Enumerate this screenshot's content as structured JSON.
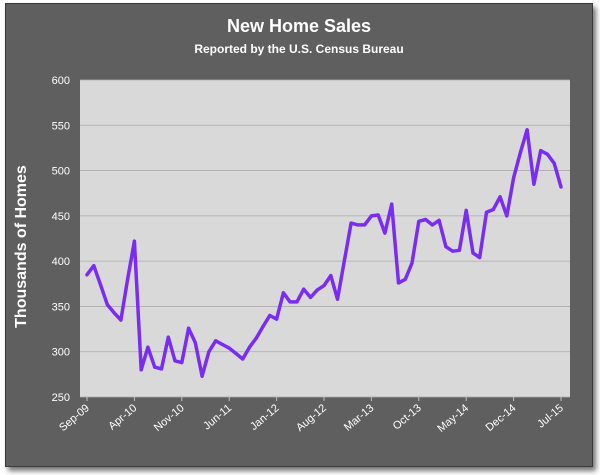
{
  "chart_data": {
    "type": "line",
    "title": "New Home Sales",
    "subtitle": "Reported by the U.S. Census Bureau",
    "ylabel": "Thousands of Homes",
    "xlabel": "",
    "ylim": [
      250,
      600
    ],
    "yticks": [
      250,
      300,
      350,
      400,
      450,
      500,
      550,
      600
    ],
    "xtick_labels": [
      "Sep-09",
      "Apr-10",
      "Nov-10",
      "Jun-11",
      "Jan-12",
      "Aug-12",
      "Mar-13",
      "Oct-13",
      "May-14",
      "Dec-14",
      "Jul-15"
    ],
    "grid": true,
    "legend": "none",
    "line_color": "#7b2cf2",
    "plot_background": "#d9d9d9",
    "series": [
      {
        "x": [
          "Sep-09",
          "Oct-09",
          "Nov-09",
          "Dec-09",
          "Jan-10",
          "Feb-10",
          "Mar-10",
          "Apr-10",
          "May-10",
          "Jun-10",
          "Jul-10",
          "Aug-10",
          "Sep-10",
          "Oct-10",
          "Nov-10",
          "Dec-10",
          "Jan-11",
          "Feb-11",
          "Mar-11",
          "Apr-11",
          "May-11",
          "Jun-11",
          "Jul-11",
          "Aug-11",
          "Sep-11",
          "Oct-11",
          "Nov-11",
          "Dec-11",
          "Jan-12",
          "Feb-12",
          "Mar-12",
          "Apr-12",
          "May-12",
          "Jun-12",
          "Jul-12",
          "Aug-12",
          "Sep-12",
          "Oct-12",
          "Nov-12",
          "Dec-12",
          "Jan-13",
          "Feb-13",
          "Mar-13",
          "Apr-13",
          "May-13",
          "Jun-13",
          "Jul-13",
          "Aug-13",
          "Sep-13",
          "Oct-13",
          "Nov-13",
          "Dec-13",
          "Jan-14",
          "Feb-14",
          "Mar-14",
          "Apr-14",
          "May-14",
          "Jun-14",
          "Jul-14",
          "Aug-14",
          "Sep-14",
          "Oct-14",
          "Nov-14",
          "Dec-14",
          "Jan-15",
          "Feb-15",
          "Mar-15",
          "Apr-15",
          "May-15",
          "Jun-15",
          "Jul-15"
        ],
        "values": [
          385,
          395,
          374,
          352,
          343,
          335,
          380,
          422,
          280,
          305,
          283,
          281,
          316,
          290,
          288,
          326,
          310,
          273,
          300,
          312,
          308,
          304,
          298,
          292,
          305,
          315,
          328,
          340,
          336,
          365,
          355,
          355,
          369,
          360,
          368,
          373,
          384,
          358,
          400,
          442,
          440,
          440,
          450,
          451,
          431,
          463,
          376,
          380,
          398,
          444,
          446,
          440,
          445,
          416,
          411,
          412,
          456,
          409,
          404,
          454,
          457,
          471,
          450,
          492,
          520,
          545,
          485,
          522,
          518,
          508,
          482
        ]
      }
    ]
  }
}
